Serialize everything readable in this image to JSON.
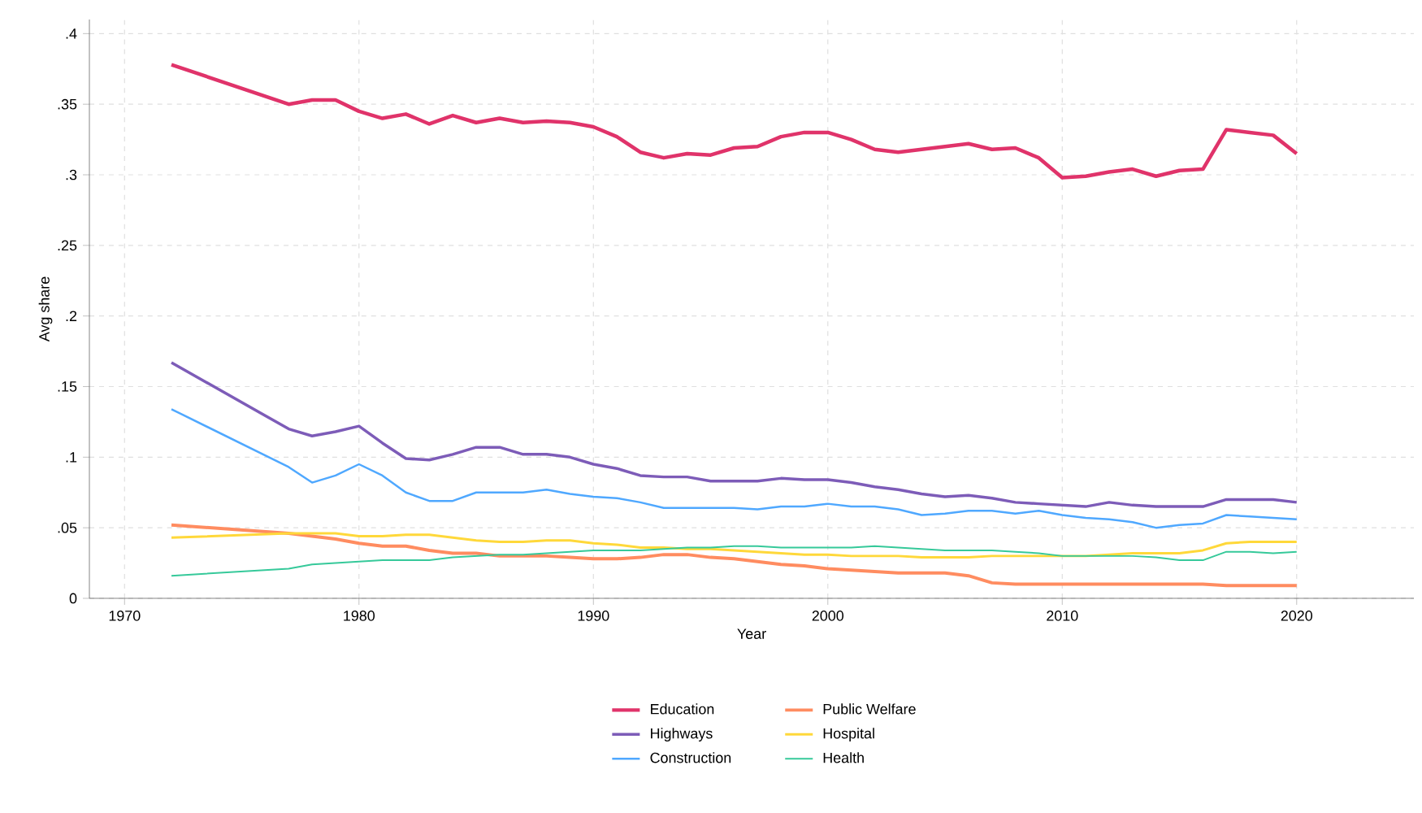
{
  "chart_data": {
    "type": "line",
    "xlabel": "Year",
    "ylabel": "Avg share",
    "x": [
      1972,
      1977,
      1978,
      1979,
      1980,
      1981,
      1982,
      1983,
      1984,
      1985,
      1986,
      1987,
      1988,
      1989,
      1990,
      1991,
      1992,
      1993,
      1994,
      1995,
      1996,
      1997,
      1998,
      1999,
      2000,
      2001,
      2002,
      2003,
      2004,
      2005,
      2006,
      2007,
      2008,
      2009,
      2010,
      2011,
      2012,
      2013,
      2014,
      2015,
      2016,
      2017,
      2018,
      2019,
      2020
    ],
    "series": [
      {
        "name": "Education",
        "color": "#e0336a",
        "values": [
          0.378,
          0.35,
          0.353,
          0.353,
          0.345,
          0.34,
          0.343,
          0.336,
          0.342,
          0.337,
          0.34,
          0.337,
          0.338,
          0.337,
          0.334,
          0.327,
          0.316,
          0.312,
          0.315,
          0.314,
          0.319,
          0.32,
          0.327,
          0.33,
          0.33,
          0.325,
          0.318,
          0.316,
          0.318,
          0.32,
          0.322,
          0.318,
          0.319,
          0.312,
          0.298,
          0.299,
          0.302,
          0.304,
          0.299,
          0.303,
          0.304,
          0.332,
          0.33,
          0.328,
          0.315
        ]
      },
      {
        "name": "Highways",
        "color": "#7d5cb8",
        "values": [
          0.167,
          0.12,
          0.115,
          0.118,
          0.122,
          0.11,
          0.099,
          0.098,
          0.102,
          0.107,
          0.107,
          0.102,
          0.102,
          0.1,
          0.095,
          0.092,
          0.087,
          0.086,
          0.086,
          0.083,
          0.083,
          0.083,
          0.085,
          0.084,
          0.084,
          0.082,
          0.079,
          0.077,
          0.074,
          0.072,
          0.073,
          0.071,
          0.068,
          0.067,
          0.066,
          0.065,
          0.068,
          0.066,
          0.065,
          0.065,
          0.065,
          0.07,
          0.07,
          0.07,
          0.068
        ]
      },
      {
        "name": "Construction",
        "color": "#4fa8ff",
        "values": [
          0.134,
          0.093,
          0.082,
          0.087,
          0.095,
          0.087,
          0.075,
          0.069,
          0.069,
          0.075,
          0.075,
          0.075,
          0.077,
          0.074,
          0.072,
          0.071,
          0.068,
          0.064,
          0.064,
          0.064,
          0.064,
          0.063,
          0.065,
          0.065,
          0.067,
          0.065,
          0.065,
          0.063,
          0.059,
          0.06,
          0.062,
          0.062,
          0.06,
          0.062,
          0.059,
          0.057,
          0.056,
          0.054,
          0.05,
          0.052,
          0.053,
          0.059,
          0.058,
          0.057,
          0.056
        ]
      },
      {
        "name": "Public Welfare",
        "color": "#ff8c60",
        "values": [
          0.052,
          0.046,
          0.044,
          0.042,
          0.039,
          0.037,
          0.037,
          0.034,
          0.032,
          0.032,
          0.03,
          0.03,
          0.03,
          0.029,
          0.028,
          0.028,
          0.029,
          0.031,
          0.031,
          0.029,
          0.028,
          0.026,
          0.024,
          0.023,
          0.021,
          0.02,
          0.019,
          0.018,
          0.018,
          0.018,
          0.016,
          0.011,
          0.01,
          0.01,
          0.01,
          0.01,
          0.01,
          0.01,
          0.01,
          0.01,
          0.01,
          0.009,
          0.009,
          0.009,
          0.009
        ]
      },
      {
        "name": "Hospital",
        "color": "#ffd83a",
        "values": [
          0.043,
          0.046,
          0.046,
          0.046,
          0.044,
          0.044,
          0.045,
          0.045,
          0.043,
          0.041,
          0.04,
          0.04,
          0.041,
          0.041,
          0.039,
          0.038,
          0.036,
          0.036,
          0.035,
          0.035,
          0.034,
          0.033,
          0.032,
          0.031,
          0.031,
          0.03,
          0.03,
          0.03,
          0.029,
          0.029,
          0.029,
          0.03,
          0.03,
          0.03,
          0.03,
          0.03,
          0.031,
          0.032,
          0.032,
          0.032,
          0.034,
          0.039,
          0.04,
          0.04,
          0.04
        ]
      },
      {
        "name": "Health",
        "color": "#36c99a",
        "values": [
          0.016,
          0.021,
          0.024,
          0.025,
          0.026,
          0.027,
          0.027,
          0.027,
          0.029,
          0.03,
          0.031,
          0.031,
          0.032,
          0.033,
          0.034,
          0.034,
          0.034,
          0.035,
          0.036,
          0.036,
          0.037,
          0.037,
          0.036,
          0.036,
          0.036,
          0.036,
          0.037,
          0.036,
          0.035,
          0.034,
          0.034,
          0.034,
          0.033,
          0.032,
          0.03,
          0.03,
          0.03,
          0.03,
          0.029,
          0.027,
          0.027,
          0.033,
          0.033,
          0.032,
          0.033
        ]
      }
    ],
    "xlim": [
      1968.5,
      2025
    ],
    "ylim": [
      0,
      0.41
    ],
    "xticks": [
      1970,
      1980,
      1990,
      2000,
      2010,
      2020
    ],
    "yticks": [
      0,
      {
        "value": 0.05,
        "label": ".05"
      },
      {
        "value": 0.1,
        "label": ".1"
      },
      {
        "value": 0.15,
        "label": ".15"
      },
      {
        "value": 0.2,
        "label": ".2"
      },
      {
        "value": 0.25,
        "label": ".25"
      },
      {
        "value": 0.3,
        "label": ".3"
      },
      {
        "value": 0.35,
        "label": ".35"
      },
      {
        "value": 0.4,
        "label": ".4"
      }
    ],
    "grid": true,
    "legend": "bottom",
    "marker": "none",
    "line_style": "solid"
  }
}
